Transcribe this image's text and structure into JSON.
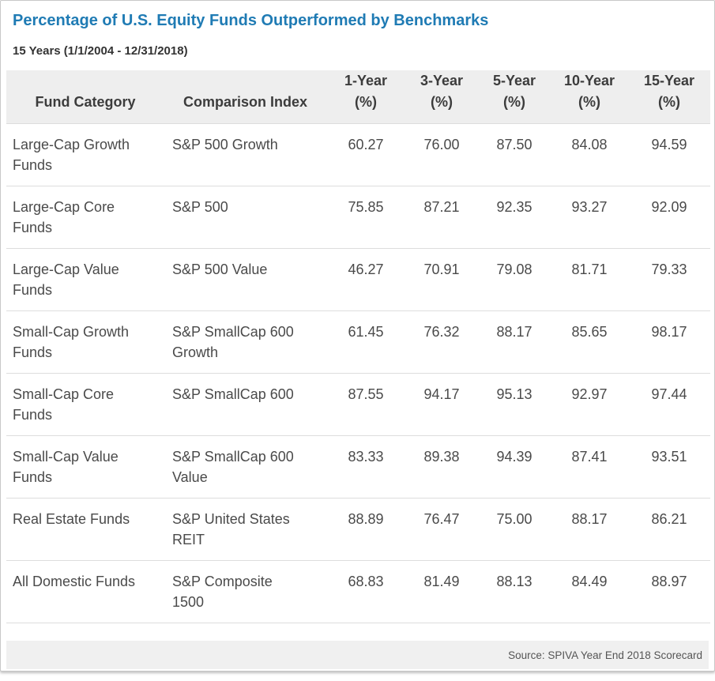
{
  "title": "Percentage of U.S. Equity Funds Outperformed by Benchmarks",
  "subtitle": "15 Years (1/1/2004 - 12/31/2018)",
  "table": {
    "header": [
      {
        "line1": "Fund Category",
        "line2": ""
      },
      {
        "line1": "Comparison Index",
        "line2": ""
      },
      {
        "line1": "1-Year",
        "line2": "(%)"
      },
      {
        "line1": "3-Year",
        "line2": "(%)"
      },
      {
        "line1": "5-Year",
        "line2": "(%)"
      },
      {
        "line1": "10-Year",
        "line2": "(%)"
      },
      {
        "line1": "15-Year",
        "line2": "(%)"
      }
    ]
  },
  "chart_data": {
    "type": "table",
    "title": "Percentage of U.S. Equity Funds Outperformed by Benchmarks",
    "subtitle": "15 Years (1/1/2004 - 12/31/2018)",
    "columns": [
      "Fund Category",
      "Comparison Index",
      "1-Year (%)",
      "3-Year (%)",
      "5-Year (%)",
      "10-Year (%)",
      "15-Year (%)"
    ],
    "rows": [
      [
        "Large-Cap Growth Funds",
        "S&P 500 Growth",
        60.27,
        76.0,
        87.5,
        84.08,
        94.59
      ],
      [
        "Large-Cap Core Funds",
        "S&P 500",
        75.85,
        87.21,
        92.35,
        93.27,
        92.09
      ],
      [
        "Large-Cap Value Funds",
        "S&P 500 Value",
        46.27,
        70.91,
        79.08,
        81.71,
        79.33
      ],
      [
        "Small-Cap Growth Funds",
        "S&P SmallCap 600 Growth",
        61.45,
        76.32,
        88.17,
        85.65,
        98.17
      ],
      [
        "Small-Cap Core Funds",
        "S&P SmallCap 600",
        87.55,
        94.17,
        95.13,
        92.97,
        97.44
      ],
      [
        "Small-Cap Value Funds",
        "S&P SmallCap 600 Value",
        83.33,
        89.38,
        94.39,
        87.41,
        93.51
      ],
      [
        "Real Estate Funds",
        "S&P United States REIT",
        88.89,
        76.47,
        75.0,
        88.17,
        86.21
      ],
      [
        "All Domestic Funds",
        "S&P Composite 1500",
        68.83,
        81.49,
        88.13,
        84.49,
        88.97
      ]
    ],
    "value_format": "2dp",
    "source": "Source: SPIVA Year End 2018 Scorecard"
  },
  "footer": {
    "source": "Source: SPIVA Year End 2018 Scorecard"
  },
  "colors": {
    "title_blue": "#1f7bb4",
    "header_bg": "#eeeeee",
    "footer_bg": "#f0f0f0",
    "row_border": "#dddddd",
    "body_text": "#4a4a4a",
    "header_text": "#3c3c3c",
    "source_text": "#555555",
    "panel_border": "#c8c8c8"
  }
}
